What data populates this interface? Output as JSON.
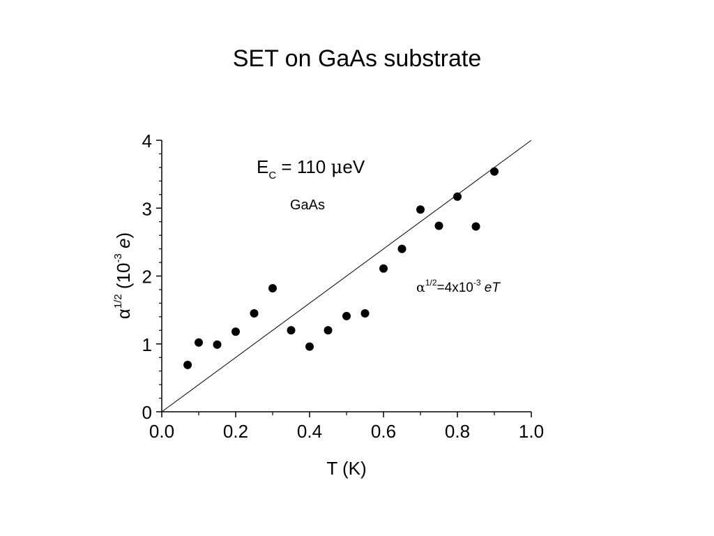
{
  "slide": {
    "title": "SET on GaAs substrate"
  },
  "chart_data": {
    "type": "scatter",
    "xlabel": "T (K)",
    "ylabel": {
      "symbol": "α",
      "exponent": "1/2",
      "unit_open": " (10",
      "unit_exp": "-3",
      "unit_e": " e",
      "unit_close": ")"
    },
    "xlim": [
      0.0,
      1.0
    ],
    "ylim": [
      0,
      4
    ],
    "x_ticks": [
      "0.0",
      "0.2",
      "0.4",
      "0.6",
      "0.8",
      "1.0"
    ],
    "y_ticks": [
      "0",
      "1",
      "2",
      "3",
      "4"
    ],
    "series": [
      {
        "marker": "filled-circle",
        "x": [
          0.07,
          0.1,
          0.15,
          0.2,
          0.25,
          0.3,
          0.35,
          0.4,
          0.45,
          0.5,
          0.55,
          0.6,
          0.65,
          0.7,
          0.75,
          0.8,
          0.85,
          0.9
        ],
        "y": [
          0.69,
          1.02,
          0.99,
          1.18,
          1.45,
          1.82,
          1.2,
          0.96,
          1.2,
          1.41,
          1.45,
          2.11,
          2.4,
          2.98,
          2.74,
          3.17,
          2.73,
          3.54
        ]
      }
    ],
    "fit_line": {
      "x": [
        0.0,
        1.0
      ],
      "y": [
        0.0,
        4.0
      ]
    },
    "annotations": {
      "ec": {
        "main": "E",
        "sub": "C",
        "rest": " = 110 ",
        "mu": "μ",
        "unit": "eV"
      },
      "material": "GaAs",
      "formula": {
        "alpha": "α",
        "exp": "1/2",
        "eq": "=4x10",
        "exp2": "-3",
        "tail": " eT"
      }
    },
    "grid": false,
    "legend": "none",
    "colors": {
      "markers": "#000000",
      "axes": "#000000",
      "fit_line": "#000000"
    }
  }
}
